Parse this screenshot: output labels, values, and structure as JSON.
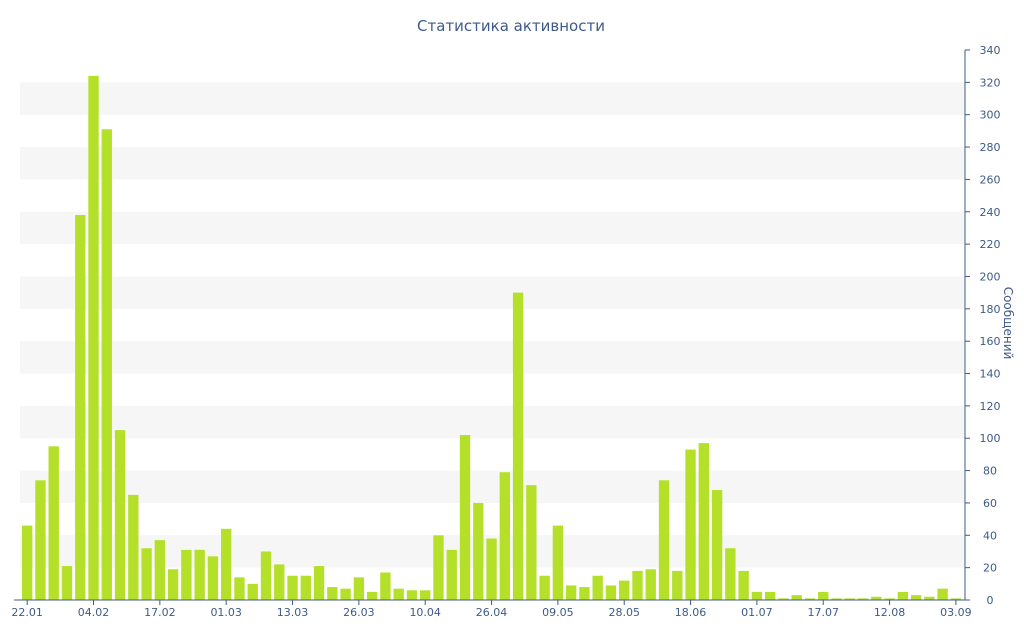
{
  "chart_data": {
    "type": "bar",
    "title": "Статистика активности",
    "ylabel": "Сообщений",
    "ylim": [
      0,
      340
    ],
    "y_ticks": [
      0,
      20,
      40,
      60,
      80,
      100,
      120,
      140,
      160,
      180,
      200,
      220,
      240,
      260,
      280,
      300,
      320,
      340
    ],
    "y_axis_position": "right",
    "grid": "alternating horizontal bands",
    "x_tick_labels": [
      "22.01",
      "04.02",
      "17.02",
      "01.03",
      "13.03",
      "26.03",
      "10.04",
      "26.04",
      "09.05",
      "28.05",
      "18.06",
      "01.07",
      "17.07",
      "12.08",
      "03.09"
    ],
    "x_tick_bar_index": [
      0,
      5,
      10,
      15,
      20,
      25,
      30,
      35,
      40,
      45,
      50,
      55,
      60,
      65,
      70
    ],
    "values": [
      46,
      74,
      95,
      21,
      238,
      324,
      291,
      105,
      65,
      32,
      37,
      19,
      31,
      31,
      27,
      44,
      14,
      10,
      30,
      22,
      15,
      15,
      21,
      8,
      7,
      14,
      5,
      17,
      7,
      6,
      6,
      40,
      31,
      102,
      60,
      38,
      79,
      190,
      71,
      15,
      46,
      9,
      8,
      15,
      9,
      12,
      18,
      19,
      74,
      18,
      93,
      97,
      68,
      32,
      18,
      5,
      5,
      1,
      3,
      1,
      5,
      1,
      1,
      1,
      2,
      1,
      5,
      3,
      2,
      7,
      1
    ],
    "bar_color": "#b5e02a"
  }
}
